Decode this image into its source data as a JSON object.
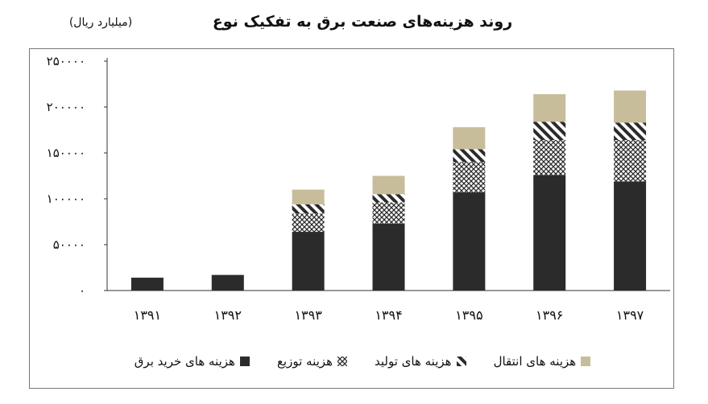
{
  "chart_data": {
    "type": "bar",
    "stacked": true,
    "title": "روند هزینه‌های صنعت برق به تفکیک نوع",
    "unit_note": "(میلیارد ریال)",
    "categories": [
      "۱۳۹۱",
      "۱۳۹۲",
      "۱۳۹۳",
      "۱۳۹۴",
      "۱۳۹۵",
      "۱۳۹۶",
      "۱۳۹۷"
    ],
    "y_ticks": [
      0,
      50000,
      100000,
      150000,
      200000,
      250000
    ],
    "y_tick_labels": [
      "۰",
      "۵۰۰۰۰",
      "۱۰۰۰۰۰",
      "۱۵۰۰۰۰",
      "۲۰۰۰۰۰",
      "۲۵۰۰۰۰"
    ],
    "ylim": [
      0,
      250000
    ],
    "grid": false,
    "legend_position": "bottom",
    "series": [
      {
        "name": "هزینه های خرید برق",
        "values": [
          14000,
          17000,
          64000,
          73000,
          107000,
          126000,
          119000
        ],
        "color": "#2b2b2b",
        "pattern": "solid"
      },
      {
        "name": "هزینه توزیع",
        "values": [
          0,
          0,
          20000,
          23000,
          33000,
          38000,
          45000
        ],
        "color": "#2b2b2b",
        "pattern": "crosshatch"
      },
      {
        "name": "هزینه های تولید",
        "values": [
          0,
          0,
          10000,
          9000,
          14000,
          20000,
          19000
        ],
        "color": "#2b2b2b",
        "pattern": "diagonal"
      },
      {
        "name": "هزینه های انتقال",
        "values": [
          0,
          0,
          16000,
          20000,
          24000,
          30000,
          35000
        ],
        "color": "#c8bd9b",
        "pattern": "solid"
      }
    ]
  }
}
